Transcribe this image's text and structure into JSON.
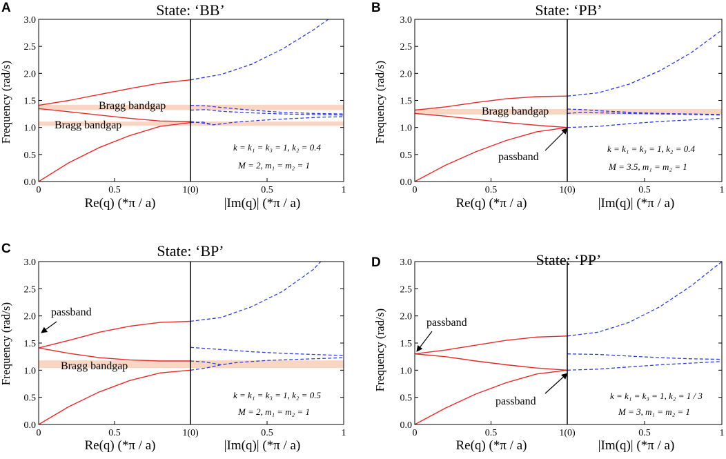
{
  "chart_data": [
    {
      "panel": "A",
      "type": "line",
      "title": "State: ‘BB’",
      "xlabel_left": "Re(q) (*π / a)",
      "xlabel_right": "|Im(q)| (*π / a)",
      "ylabel": "Frequency (rad/s)",
      "ylim": [
        0,
        3.0
      ],
      "yticks": [
        "0.0",
        "0.5",
        "1.0",
        "1.5",
        "2.0",
        "2.5",
        "3.0"
      ],
      "xticks_left": [
        "0",
        "0.5",
        "1(0)"
      ],
      "xticks_right": [
        "0.5",
        "1"
      ],
      "bands": [
        {
          "label": "Bragg bandgap",
          "range": [
            1.32,
            1.42
          ]
        },
        {
          "label": "Bragg bandgap",
          "range": [
            1.03,
            1.11
          ]
        }
      ],
      "real_branches": [
        {
          "x": [
            0,
            0.2,
            0.4,
            0.6,
            0.8,
            1.0
          ],
          "y": [
            0,
            0.35,
            0.63,
            0.85,
            1.02,
            1.09
          ]
        },
        {
          "x": [
            0,
            0.2,
            0.4,
            0.6,
            0.8,
            1.0
          ],
          "y": [
            1.35,
            1.29,
            1.23,
            1.17,
            1.12,
            1.11
          ]
        },
        {
          "x": [
            0,
            0.2,
            0.4,
            0.6,
            0.8,
            1.0
          ],
          "y": [
            1.41,
            1.5,
            1.61,
            1.72,
            1.82,
            1.88
          ]
        }
      ],
      "imag_branches": [
        {
          "x": [
            0,
            0.2,
            0.4,
            0.6,
            0.8,
            0.9
          ],
          "y": [
            1.88,
            1.98,
            2.17,
            2.45,
            2.8,
            3.0
          ]
        },
        {
          "x": [
            0,
            0.1,
            0.2,
            0.4,
            0.6,
            0.8,
            1.0
          ],
          "y": [
            1.41,
            1.4,
            1.37,
            1.32,
            1.28,
            1.26,
            1.25
          ]
        },
        {
          "x": [
            0,
            0.1,
            0.2,
            0.4,
            0.6,
            0.8,
            1.0
          ],
          "y": [
            1.32,
            1.33,
            1.3,
            1.27,
            1.25,
            1.24,
            1.23
          ]
        },
        {
          "x": [
            0,
            0.08,
            0.15,
            0.3,
            0.5,
            0.7,
            0.85,
            1.0
          ],
          "y": [
            1.11,
            1.08,
            1.05,
            1.1,
            1.14,
            1.17,
            1.19,
            1.2
          ]
        },
        {
          "x": [
            0,
            0.08,
            0.15
          ],
          "y": [
            1.09,
            1.1,
            1.05
          ]
        }
      ],
      "params": [
        "k = k₁ = k₃ = 1, k₂ = 0.4",
        "M = 2, m₁ = m₂ = 1"
      ]
    },
    {
      "panel": "B",
      "type": "line",
      "title": "State: ‘PB’",
      "xlabel_left": "Re(q) (*π / a)",
      "xlabel_right": "|Im(q)| (*π / a)",
      "ylabel": "Frequency (rad/s)",
      "ylim": [
        0,
        3.0
      ],
      "yticks": [
        "0.0",
        "0.5",
        "1.0",
        "1.5",
        "2.0",
        "2.5",
        "3.0"
      ],
      "xticks_left": [
        "0",
        "0.5",
        "1(0)"
      ],
      "xticks_right": [
        "0.5",
        "1"
      ],
      "bands": [
        {
          "label": "Bragg bandgap",
          "range": [
            1.24,
            1.34
          ]
        }
      ],
      "real_branches": [
        {
          "x": [
            0,
            0.2,
            0.4,
            0.6,
            0.8,
            1.0
          ],
          "y": [
            0,
            0.3,
            0.55,
            0.76,
            0.92,
            1.0
          ]
        },
        {
          "x": [
            0,
            0.2,
            0.4,
            0.6,
            0.8,
            1.0
          ],
          "y": [
            1.26,
            1.21,
            1.15,
            1.09,
            1.04,
            1.0
          ]
        },
        {
          "x": [
            0,
            0.2,
            0.4,
            0.6,
            0.8,
            1.0
          ],
          "y": [
            1.32,
            1.38,
            1.46,
            1.53,
            1.57,
            1.58
          ]
        }
      ],
      "imag_branches": [
        {
          "x": [
            0,
            0.2,
            0.4,
            0.6,
            0.8,
            1.0
          ],
          "y": [
            1.58,
            1.64,
            1.8,
            2.05,
            2.38,
            2.8
          ]
        },
        {
          "x": [
            0,
            0.1,
            0.2,
            0.4,
            0.6,
            0.8,
            1.0
          ],
          "y": [
            1.34,
            1.33,
            1.31,
            1.28,
            1.26,
            1.25,
            1.24
          ]
        },
        {
          "x": [
            0,
            0.1,
            0.2,
            0.4,
            0.6,
            0.8,
            1.0
          ],
          "y": [
            1.26,
            1.28,
            1.27,
            1.26,
            1.25,
            1.24,
            1.23
          ]
        },
        {
          "x": [
            0,
            0.2,
            0.4,
            0.6,
            0.8,
            1.0
          ],
          "y": [
            1.0,
            1.02,
            1.07,
            1.11,
            1.14,
            1.17
          ]
        }
      ],
      "params": [
        "k = k₁ = k₃ = 1, k₂ = 0.4",
        "M = 3.5, m₁ = m₂ = 1"
      ],
      "annotations": [
        {
          "label": "passband"
        }
      ]
    },
    {
      "panel": "C",
      "type": "line",
      "title": "State: ‘BP’",
      "xlabel_left": "Re(q) (*π / a)",
      "xlabel_right": "|Im(q)| (*π / a)",
      "ylabel": "Frequency (rad/s)",
      "ylim": [
        0,
        3.0
      ],
      "yticks": [
        "0.0",
        "0.5",
        "1.0",
        "1.5",
        "2.0",
        "2.5",
        "3.0"
      ],
      "xticks_left": [
        "0",
        "0.5",
        "1(0)"
      ],
      "xticks_right": [
        "0.5",
        "1"
      ],
      "bands": [
        {
          "label": "Bragg bandgap",
          "range": [
            1.04,
            1.18
          ]
        }
      ],
      "real_branches": [
        {
          "x": [
            0,
            0.2,
            0.4,
            0.6,
            0.8,
            1.0
          ],
          "y": [
            0,
            0.33,
            0.6,
            0.81,
            0.95,
            1.0
          ]
        },
        {
          "x": [
            0,
            0.2,
            0.4,
            0.6,
            0.8,
            1.0
          ],
          "y": [
            1.41,
            1.31,
            1.23,
            1.19,
            1.17,
            1.17
          ]
        },
        {
          "x": [
            0,
            0.2,
            0.4,
            0.6,
            0.8,
            1.0
          ],
          "y": [
            1.41,
            1.55,
            1.7,
            1.81,
            1.88,
            1.9
          ]
        }
      ],
      "imag_branches": [
        {
          "x": [
            0,
            0.2,
            0.4,
            0.6,
            0.8,
            0.85
          ],
          "y": [
            1.9,
            1.97,
            2.17,
            2.45,
            2.85,
            3.0
          ]
        },
        {
          "x": [
            0,
            0.2,
            0.4,
            0.6,
            0.8,
            1.0
          ],
          "y": [
            1.42,
            1.38,
            1.34,
            1.31,
            1.29,
            1.27
          ]
        },
        {
          "x": [
            0,
            0.1,
            0.2,
            0.3,
            0.5,
            0.7,
            1.0
          ],
          "y": [
            1.17,
            1.15,
            1.1,
            1.14,
            1.18,
            1.2,
            1.23
          ]
        },
        {
          "x": [
            0,
            0.1,
            0.2
          ],
          "y": [
            1.0,
            1.04,
            1.1
          ]
        }
      ],
      "params": [
        "k = k₁ = k₃ = 1, k₂ = 0.5",
        "M = 2, m₁ = m₂ = 1"
      ],
      "annotations": [
        {
          "label": "passband"
        }
      ]
    },
    {
      "panel": "D",
      "type": "line",
      "title": "State: ‘PP’",
      "xlabel_left": "Re(q) (*π / a)",
      "xlabel_right": "|Im(q)| (*π / a)",
      "ylabel": "Frequency (rad/s)",
      "ylim": [
        0,
        3.0
      ],
      "yticks": [
        "0.0",
        "0.5",
        "1.0",
        "1.5",
        "2.0",
        "2.5",
        "3.0"
      ],
      "xticks_left": [
        "0",
        "0.5",
        "1(0)"
      ],
      "xticks_right": [
        "0.5",
        "1"
      ],
      "bands": [],
      "real_branches": [
        {
          "x": [
            0,
            0.2,
            0.4,
            0.6,
            0.8,
            1.0
          ],
          "y": [
            0,
            0.3,
            0.56,
            0.77,
            0.93,
            1.0
          ]
        },
        {
          "x": [
            0,
            0.2,
            0.4,
            0.6,
            0.8,
            1.0
          ],
          "y": [
            1.3,
            1.25,
            1.17,
            1.1,
            1.04,
            1.0
          ]
        },
        {
          "x": [
            0,
            0.2,
            0.4,
            0.6,
            0.8,
            1.0
          ],
          "y": [
            1.3,
            1.37,
            1.46,
            1.55,
            1.61,
            1.63
          ]
        }
      ],
      "imag_branches": [
        {
          "x": [
            0,
            0.2,
            0.4,
            0.6,
            0.8,
            1.0
          ],
          "y": [
            1.63,
            1.7,
            1.88,
            2.17,
            2.55,
            3.0
          ]
        },
        {
          "x": [
            0,
            0.2,
            0.4,
            0.6,
            0.8,
            1.0
          ],
          "y": [
            1.3,
            1.29,
            1.26,
            1.23,
            1.21,
            1.2
          ]
        },
        {
          "x": [
            0,
            0.2,
            0.4,
            0.6,
            0.8,
            1.0
          ],
          "y": [
            1.0,
            1.02,
            1.06,
            1.1,
            1.13,
            1.16
          ]
        }
      ],
      "params": [
        "k = k₁ = k₃ = 1, k₂ = 1 / 3",
        "M = 3, m₁ = m₂ = 1"
      ],
      "annotations": [
        {
          "label": "passband"
        },
        {
          "label": "passband"
        }
      ]
    }
  ],
  "colors": {
    "real": "#e8292b",
    "imag": "#2d3fd6",
    "band": "#f8d6c3",
    "axis": "#000000"
  }
}
